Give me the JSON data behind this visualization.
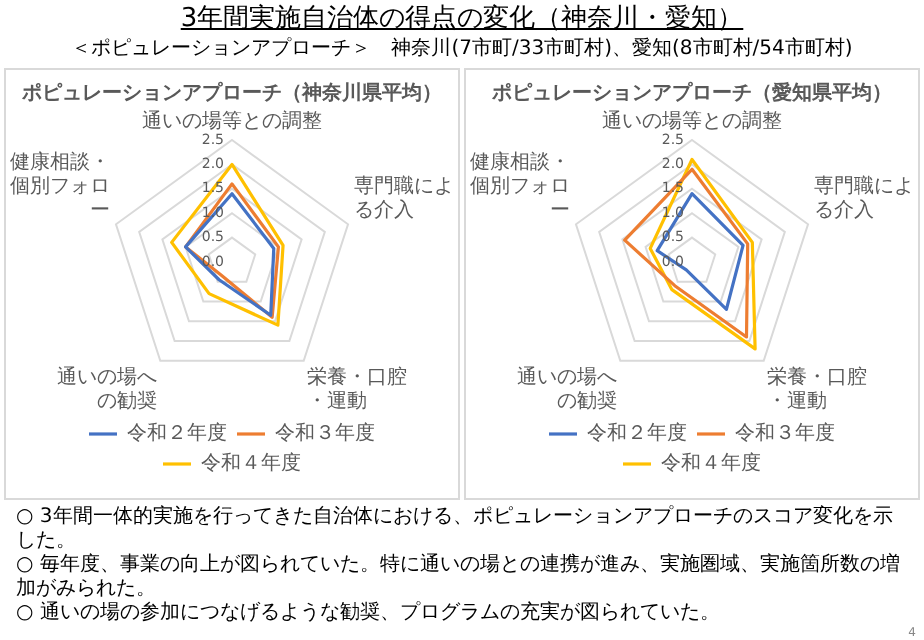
{
  "chart_data": [
    {
      "type": "other",
      "title": "3年間実施自治体の得点の変化（神奈川・愛知）",
      "subtitle": "＜ポピュレーションアプローチ＞　神奈川(7市町/33市町村)、愛知(8市町村/54市町村)"
    },
    {
      "type": "radar",
      "title": "ポピュレーションアプローチ（神奈川県平均）",
      "categories": [
        "通いの場等との調整",
        "専門職による介入",
        "栄養・口腔・運動",
        "通いの場への勧奨",
        "健康相談・個別フォロー"
      ],
      "series": [
        {
          "name": "令和２年度",
          "color": "#4472c4",
          "values": [
            1.4,
            0.9,
            1.35,
            0.45,
            1.0
          ]
        },
        {
          "name": "令和３年度",
          "color": "#ed7d31",
          "values": [
            1.6,
            1.0,
            1.4,
            0.35,
            1.0
          ]
        },
        {
          "name": "令和４年度",
          "color": "#ffc000",
          "values": [
            2.0,
            1.1,
            1.6,
            0.8,
            1.3
          ]
        }
      ],
      "ylim": [
        0,
        2.5
      ],
      "yticks": [
        {
          "value": 0,
          "label": "0.0"
        },
        {
          "value": 0.5,
          "label": "0.5"
        },
        {
          "value": 1,
          "label": "1.0"
        },
        {
          "value": 1.5,
          "label": "1.5"
        },
        {
          "value": 2,
          "label": "2.0"
        },
        {
          "value": 2.5,
          "label": "2.5"
        }
      ],
      "grid": true,
      "legend": "bottom",
      "marker": "none"
    },
    {
      "type": "radar",
      "title": "ポピュレーションアプローチ（愛知県平均）",
      "categories": [
        "通いの場等との調整",
        "専門職による介入",
        "栄養・口腔・運動",
        "通いの場への勧奨",
        "健康相談・個別フォロー"
      ],
      "series": [
        {
          "name": "令和２年度",
          "color": "#4472c4",
          "values": [
            1.4,
            1.1,
            1.2,
            0.2,
            0.75
          ]
        },
        {
          "name": "令和３年度",
          "color": "#ed7d31",
          "values": [
            1.9,
            1.2,
            1.9,
            0.6,
            1.45
          ]
        },
        {
          "name": "令和４年度",
          "color": "#ffc000",
          "values": [
            2.1,
            1.3,
            2.2,
            0.7,
            0.9
          ]
        }
      ],
      "ylim": [
        0,
        2.5
      ],
      "yticks": [
        {
          "value": 0,
          "label": "0.0"
        },
        {
          "value": 0.5,
          "label": "0.5"
        },
        {
          "value": 1,
          "label": "1.0"
        },
        {
          "value": 1.5,
          "label": "1.5"
        },
        {
          "value": 2,
          "label": "2.0"
        },
        {
          "value": 2.5,
          "label": "2.5"
        }
      ],
      "grid": true,
      "legend": "bottom",
      "marker": "none"
    },
    {
      "type": "other",
      "annotations": [
        "○ 3年間一体的実施を行ってきた自治体における、ポピュレーションアプローチのスコア変化を示した。",
        "○ 毎年度、事業の向上が図られていた。特に通いの場との連携が進み、実施圏域、実施箇所数の増加がみられた。",
        "○ 通いの場の参加につなげるような勧奨、プログラムの充実が図られていた。",
        "4"
      ]
    }
  ]
}
